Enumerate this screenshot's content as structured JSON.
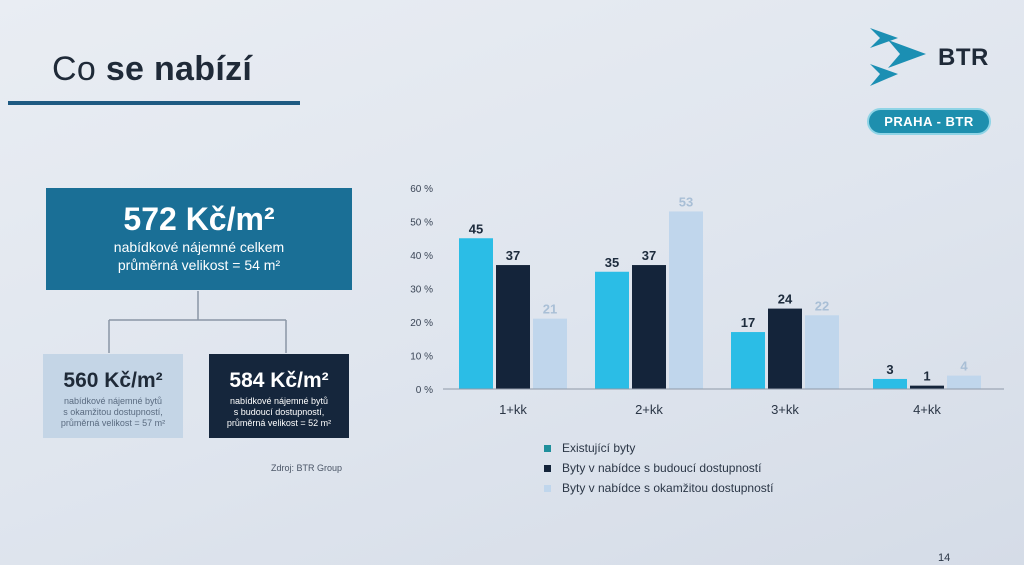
{
  "slide": {
    "title_light": "Co",
    "title_bold": "se nabízí",
    "logo_text": "BTR",
    "city_badge": "PRAHA - BTR",
    "page_number": "14",
    "source": "Zdroj: BTR Group"
  },
  "main_box": {
    "price": "572 Kč/m²",
    "line1": "nabídkové nájemné celkem",
    "line2": "průměrná velikost = 54 m²"
  },
  "sub_boxes": [
    {
      "price": "560 Kč/m²",
      "line1": "nabídkové nájemné bytů",
      "line2": "s okamžitou dostupností,",
      "line3": "průměrná velikost = 57 m²"
    },
    {
      "price": "584 Kč/m²",
      "line1": "nabídkové nájemné bytů",
      "line2": "s budoucí dostupností,",
      "line3": "průměrná velikost = 52 m²"
    }
  ],
  "colors": {
    "existing": "#2bbde6",
    "future": "#14243a",
    "immediate": "#c0d6ec",
    "existing_legend": "#1f8f9c",
    "immediate_label": "#a9bfd6"
  },
  "chart_data": {
    "type": "bar",
    "categories": [
      "1+kk",
      "2+kk",
      "3+kk",
      "4+kk"
    ],
    "y_ticks": [
      "0 %",
      "10 %",
      "20 %",
      "30 %",
      "40 %",
      "50 %",
      "60 %"
    ],
    "ylim": [
      0,
      60
    ],
    "grid": false,
    "legend_position": "bottom",
    "series": [
      {
        "name": "Existující byty",
        "values": [
          45,
          35,
          17,
          3
        ]
      },
      {
        "name": "Byty v nabídce s budoucí dostupností",
        "values": [
          37,
          37,
          24,
          1
        ]
      },
      {
        "name": "Byty v nabídce s okamžitou dostupností",
        "values": [
          21,
          53,
          22,
          4
        ]
      }
    ]
  }
}
